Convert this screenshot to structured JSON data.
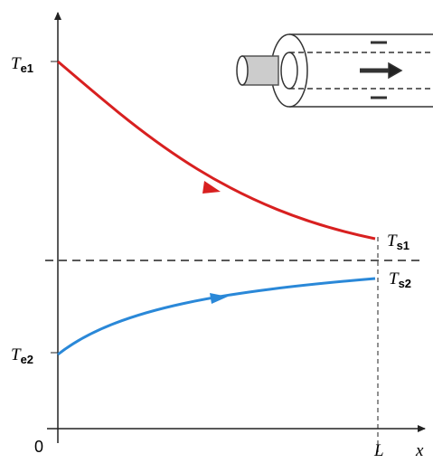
{
  "labels": [
    {
      "symbol": "T",
      "subscript": "e1"
    },
    {
      "symbol": "T",
      "subscript": "s1"
    },
    {
      "symbol": "T",
      "subscript": "s2"
    },
    {
      "symbol": "T",
      "subscript": "e2"
    }
  ],
  "axis": {
    "origin": "0",
    "end": "L",
    "x": "x"
  }
}
